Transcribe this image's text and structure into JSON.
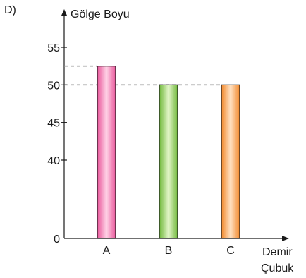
{
  "option_label": "D)",
  "chart_data": {
    "type": "bar",
    "ylabel": "Gölge Boyu",
    "xlabel_line1": "Demir",
    "xlabel_line2": "Çubuk",
    "categories": [
      "A",
      "B",
      "C"
    ],
    "values": [
      52.5,
      50,
      50
    ],
    "yticks": [
      "0",
      "40",
      "45",
      "50",
      "55"
    ],
    "ylim": [
      0,
      57
    ],
    "y_axis_break": true,
    "reference_lines": [
      52.5,
      50
    ],
    "colors": {
      "A": "#f07ab0",
      "B": "#8fca5a",
      "C": "#f7a35c"
    },
    "grid": false
  }
}
